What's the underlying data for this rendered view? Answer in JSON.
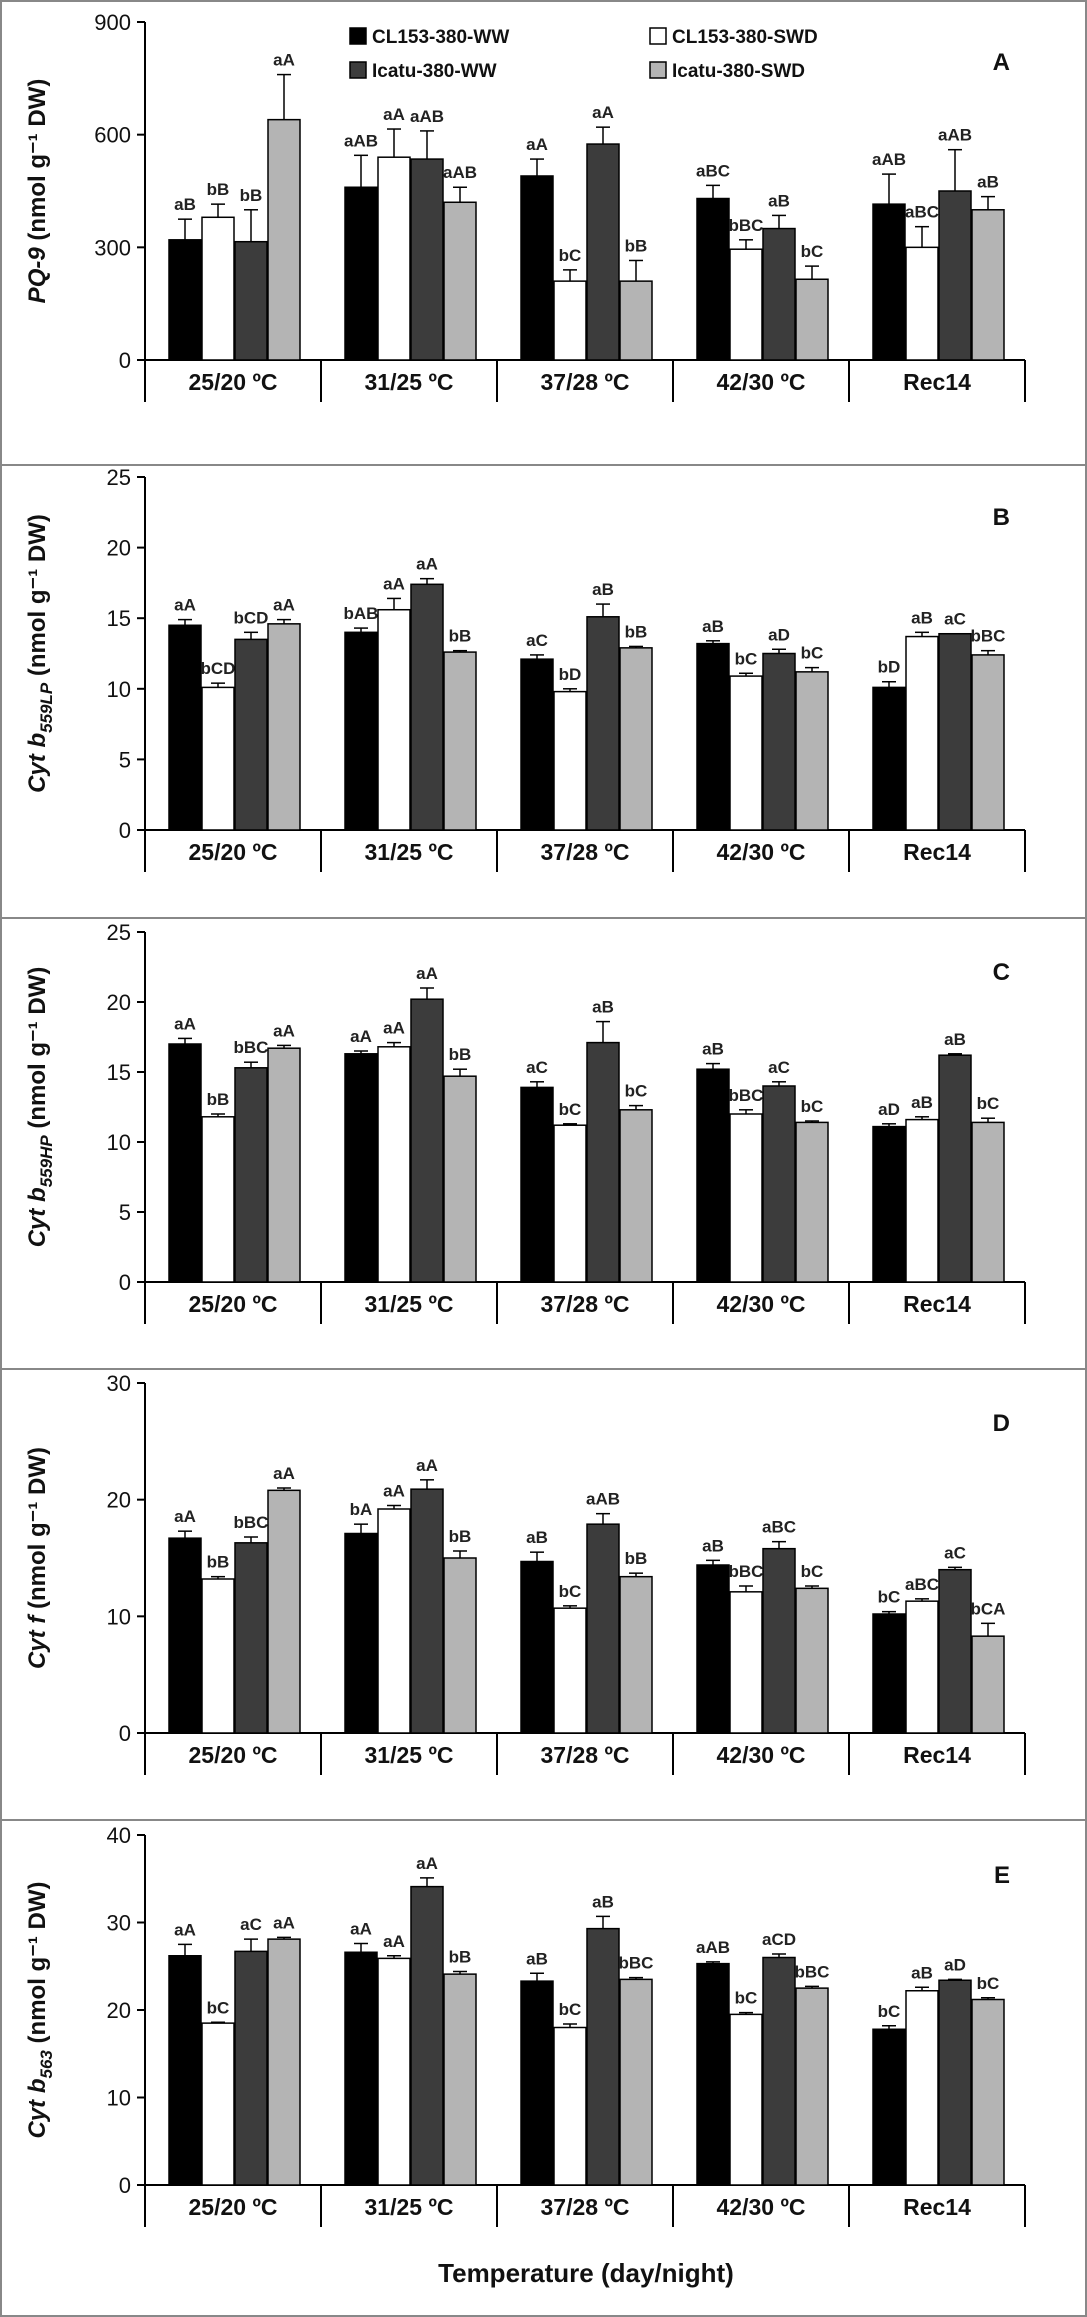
{
  "legend": [
    "CL153-380-WW",
    "CL153-380-SWD",
    "Icatu-380-WW",
    "Icatu-380-SWD"
  ],
  "series_colors": [
    "#000000",
    "#ffffff",
    "#3c3c3c",
    "#b4b4b4"
  ],
  "categories": [
    "25/20 ºC",
    "31/25 ºC",
    "37/28 ºC",
    "42/30 ºC",
    "Rec14"
  ],
  "x_title": "Temperature (day/night)",
  "chart_data": [
    {
      "type": "bar",
      "panel": "A",
      "ylabel": {
        "italic": "PQ-9",
        "rest": " (nmol g⁻¹ DW)"
      },
      "ylim": [
        0,
        900
      ],
      "yticks": [
        0,
        300,
        600,
        900
      ],
      "categories": [
        "25/20 ºC",
        "31/25 ºC",
        "37/28 ºC",
        "42/30 ºC",
        "Rec14"
      ],
      "series": [
        {
          "name": "CL153-380-WW",
          "values": [
            320,
            460,
            490,
            430,
            415
          ],
          "errors": [
            55,
            85,
            45,
            35,
            80
          ],
          "labels": [
            "aB",
            "aAB",
            "aA",
            "aBC",
            "aAB"
          ]
        },
        {
          "name": "CL153-380-SWD",
          "values": [
            380,
            540,
            210,
            295,
            300
          ],
          "errors": [
            35,
            75,
            30,
            25,
            55
          ],
          "labels": [
            "bB",
            "aA",
            "bC",
            "bBC",
            "aBC"
          ]
        },
        {
          "name": "Icatu-380-WW",
          "values": [
            315,
            535,
            575,
            350,
            450
          ],
          "errors": [
            85,
            75,
            45,
            35,
            110
          ],
          "labels": [
            "bB",
            "aAB",
            "aA",
            "aB",
            "aAB"
          ]
        },
        {
          "name": "Icatu-380-SWD",
          "values": [
            640,
            420,
            210,
            215,
            400
          ],
          "errors": [
            120,
            40,
            55,
            35,
            35
          ],
          "labels": [
            "aA",
            "aAB",
            "bB",
            "bC",
            "aB"
          ]
        }
      ]
    },
    {
      "type": "bar",
      "panel": "B",
      "ylabel": {
        "italic": "Cyt b",
        "sub": "559LP",
        "rest": " (nmol g⁻¹ DW)"
      },
      "ylim": [
        0,
        25
      ],
      "yticks": [
        0,
        5,
        10,
        15,
        20,
        25
      ],
      "categories": [
        "25/20 ºC",
        "31/25 ºC",
        "37/28 ºC",
        "42/30 ºC",
        "Rec14"
      ],
      "series": [
        {
          "name": "CL153-380-WW",
          "values": [
            14.5,
            14.0,
            12.1,
            13.2,
            10.1
          ],
          "errors": [
            0.4,
            0.3,
            0.3,
            0.2,
            0.4
          ],
          "labels": [
            "aA",
            "bAB",
            "aC",
            "aB",
            "bD"
          ]
        },
        {
          "name": "CL153-380-SWD",
          "values": [
            10.1,
            15.6,
            9.8,
            10.9,
            13.7
          ],
          "errors": [
            0.3,
            0.8,
            0.2,
            0.2,
            0.3
          ],
          "labels": [
            "bCD",
            "aA",
            "bD",
            "bC",
            "aB"
          ]
        },
        {
          "name": "Icatu-380-WW",
          "values": [
            13.5,
            17.4,
            15.1,
            12.5,
            13.9
          ],
          "errors": [
            0.5,
            0.4,
            0.9,
            0.3,
            0.0
          ],
          "labels": [
            "bCD",
            "aA",
            "aB",
            "aD",
            "aC"
          ]
        },
        {
          "name": "Icatu-380-SWD",
          "values": [
            14.6,
            12.6,
            12.9,
            11.2,
            12.4
          ],
          "errors": [
            0.3,
            0.1,
            0.1,
            0.3,
            0.3
          ],
          "labels": [
            "aA",
            "bB",
            "bB",
            "bC",
            "bBC"
          ]
        }
      ]
    },
    {
      "type": "bar",
      "panel": "C",
      "ylabel": {
        "italic": "Cyt b",
        "sub": "559HP",
        "rest": " (nmol g⁻¹ DW)"
      },
      "ylim": [
        0,
        25
      ],
      "yticks": [
        0,
        5,
        10,
        15,
        20,
        25
      ],
      "categories": [
        "25/20 ºC",
        "31/25 ºC",
        "37/28 ºC",
        "42/30 ºC",
        "Rec14"
      ],
      "series": [
        {
          "name": "CL153-380-WW",
          "values": [
            17.0,
            16.3,
            13.9,
            15.2,
            11.1
          ],
          "errors": [
            0.4,
            0.2,
            0.4,
            0.4,
            0.2
          ],
          "labels": [
            "aA",
            "aA",
            "aC",
            "aB",
            "aD"
          ]
        },
        {
          "name": "CL153-380-SWD",
          "values": [
            11.8,
            16.8,
            11.2,
            12.0,
            11.6
          ],
          "errors": [
            0.2,
            0.3,
            0.1,
            0.3,
            0.2
          ],
          "labels": [
            "bB",
            "aA",
            "bC",
            "bBC",
            "aB"
          ]
        },
        {
          "name": "Icatu-380-WW",
          "values": [
            15.3,
            20.2,
            17.1,
            14.0,
            16.2
          ],
          "errors": [
            0.4,
            0.8,
            1.5,
            0.3,
            0.1
          ],
          "labels": [
            "bBC",
            "aA",
            "aB",
            "aC",
            "aB"
          ]
        },
        {
          "name": "Icatu-380-SWD",
          "values": [
            16.7,
            14.7,
            12.3,
            11.4,
            11.4
          ],
          "errors": [
            0.2,
            0.5,
            0.3,
            0.1,
            0.3
          ],
          "labels": [
            "aA",
            "bB",
            "bC",
            "bC",
            "bC"
          ]
        }
      ]
    },
    {
      "type": "bar",
      "panel": "D",
      "ylabel": {
        "italic": "Cyt f",
        "rest": " (nmol g⁻¹ DW)"
      },
      "ylim": [
        0,
        30
      ],
      "yticks": [
        0,
        10,
        20,
        30
      ],
      "categories": [
        "25/20 ºC",
        "31/25 ºC",
        "37/28 ºC",
        "42/30 ºC",
        "Rec14"
      ],
      "series": [
        {
          "name": "CL153-380-WW",
          "values": [
            16.7,
            17.1,
            14.7,
            14.4,
            10.2
          ],
          "errors": [
            0.6,
            0.8,
            0.8,
            0.4,
            0.2
          ],
          "labels": [
            "aA",
            "bA",
            "aB",
            "aB",
            "bC"
          ]
        },
        {
          "name": "CL153-380-SWD",
          "values": [
            13.2,
            19.2,
            10.7,
            12.1,
            11.3
          ],
          "errors": [
            0.2,
            0.3,
            0.2,
            0.5,
            0.2
          ],
          "labels": [
            "bB",
            "aA",
            "bC",
            "bBC",
            "aBC"
          ]
        },
        {
          "name": "Icatu-380-WW",
          "values": [
            16.3,
            20.9,
            17.9,
            15.8,
            14.0
          ],
          "errors": [
            0.5,
            0.8,
            0.9,
            0.6,
            0.2
          ],
          "labels": [
            "bBC",
            "aA",
            "aAB",
            "aBC",
            "aC"
          ]
        },
        {
          "name": "Icatu-380-SWD",
          "values": [
            20.8,
            15.0,
            13.4,
            12.4,
            8.3
          ],
          "errors": [
            0.2,
            0.6,
            0.3,
            0.2,
            1.1
          ],
          "labels": [
            "aA",
            "bB",
            "bB",
            "bC",
            "bCA"
          ]
        }
      ]
    },
    {
      "type": "bar",
      "panel": "E",
      "ylabel": {
        "italic": "Cyt b",
        "sub": "563",
        "rest": " (nmol g⁻¹ DW)"
      },
      "ylim": [
        0,
        40
      ],
      "yticks": [
        0,
        10,
        20,
        30,
        40
      ],
      "categories": [
        "25/20 ºC",
        "31/25 ºC",
        "37/28 ºC",
        "42/30 ºC",
        "Rec14"
      ],
      "series": [
        {
          "name": "CL153-380-WW",
          "values": [
            26.2,
            26.6,
            23.3,
            25.3,
            17.8
          ],
          "errors": [
            1.3,
            1.0,
            0.9,
            0.2,
            0.4
          ],
          "labels": [
            "aA",
            "aA",
            "aB",
            "aAB",
            "bC"
          ]
        },
        {
          "name": "CL153-380-SWD",
          "values": [
            18.5,
            25.9,
            18.0,
            19.5,
            22.2
          ],
          "errors": [
            0.1,
            0.3,
            0.4,
            0.2,
            0.4
          ],
          "labels": [
            "bC",
            "aA",
            "bC",
            "bC",
            "aB"
          ]
        },
        {
          "name": "Icatu-380-WW",
          "values": [
            26.7,
            34.1,
            29.3,
            26.0,
            23.4
          ],
          "errors": [
            1.4,
            1.0,
            1.4,
            0.4,
            0.1
          ],
          "labels": [
            "aC",
            "aA",
            "aB",
            "aCD",
            "aD"
          ]
        },
        {
          "name": "Icatu-380-SWD",
          "values": [
            28.1,
            24.1,
            23.5,
            22.5,
            21.2
          ],
          "errors": [
            0.2,
            0.3,
            0.2,
            0.2,
            0.2
          ],
          "labels": [
            "aA",
            "bB",
            "bBC",
            "bBC",
            "bC"
          ]
        }
      ]
    }
  ]
}
